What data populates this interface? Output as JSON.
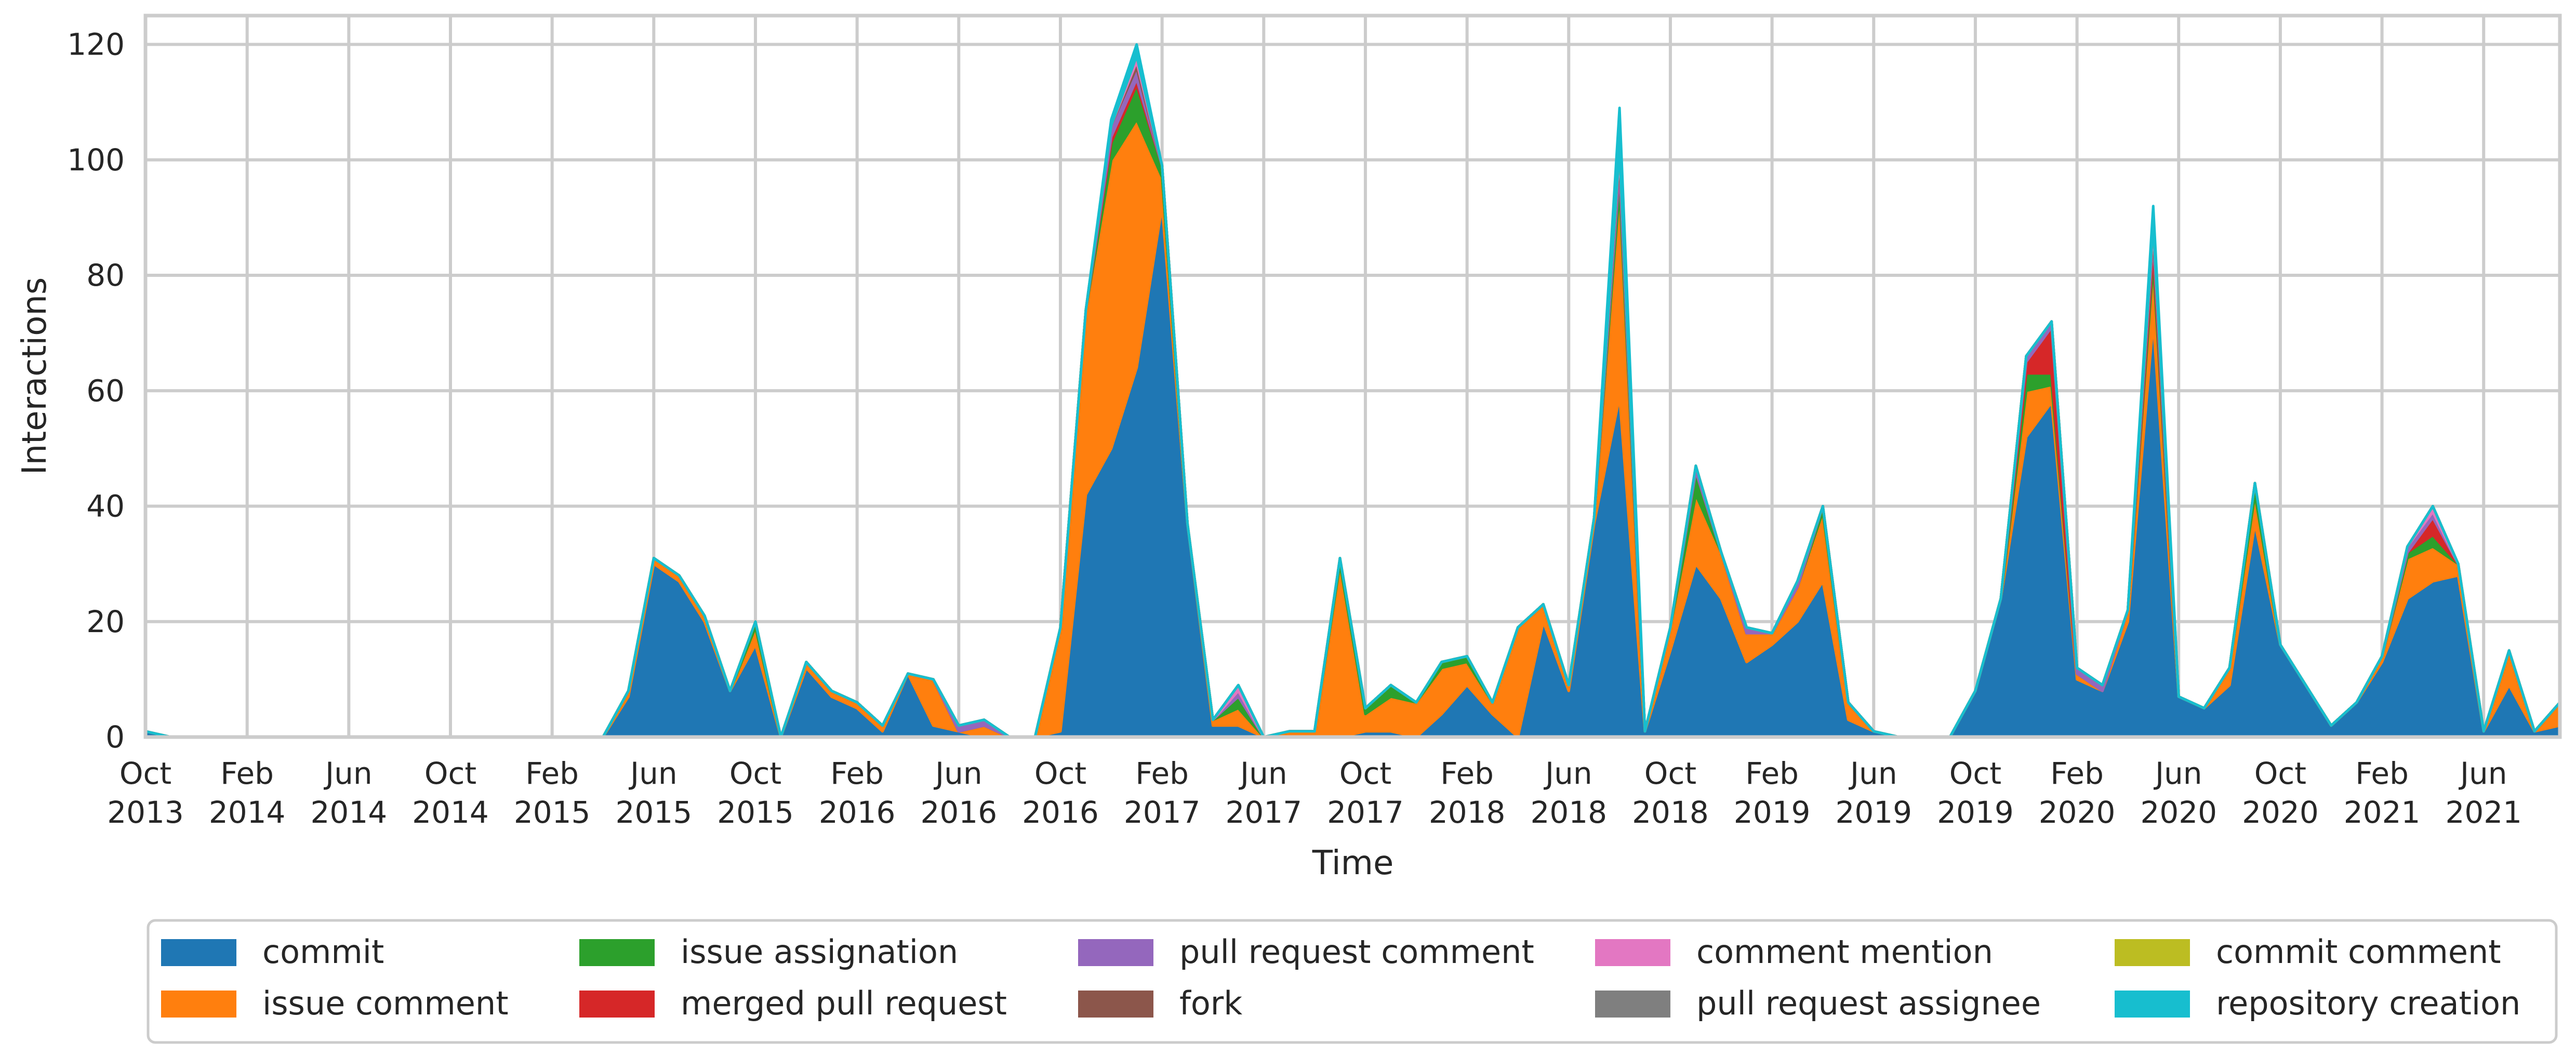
{
  "chart_data": {
    "type": "area",
    "stacked": true,
    "title": "",
    "xlabel": "Time",
    "ylabel": "Interactions",
    "ylim": [
      0,
      125
    ],
    "y_ticks": [
      0,
      20,
      40,
      60,
      80,
      100,
      120
    ],
    "x_range": [
      "2013-10",
      "2021-09"
    ],
    "x_ticks": [
      {
        "date": "2013-10",
        "label": [
          "Oct",
          "2013"
        ]
      },
      {
        "date": "2014-02",
        "label": [
          "Feb",
          "2014"
        ]
      },
      {
        "date": "2014-06",
        "label": [
          "Jun",
          "2014"
        ]
      },
      {
        "date": "2014-10",
        "label": [
          "Oct",
          "2014"
        ]
      },
      {
        "date": "2015-02",
        "label": [
          "Feb",
          "2015"
        ]
      },
      {
        "date": "2015-06",
        "label": [
          "Jun",
          "2015"
        ]
      },
      {
        "date": "2015-10",
        "label": [
          "Oct",
          "2015"
        ]
      },
      {
        "date": "2016-02",
        "label": [
          "Feb",
          "2016"
        ]
      },
      {
        "date": "2016-06",
        "label": [
          "Jun",
          "2016"
        ]
      },
      {
        "date": "2016-10",
        "label": [
          "Oct",
          "2016"
        ]
      },
      {
        "date": "2017-02",
        "label": [
          "Feb",
          "2017"
        ]
      },
      {
        "date": "2017-06",
        "label": [
          "Jun",
          "2017"
        ]
      },
      {
        "date": "2017-10",
        "label": [
          "Oct",
          "2017"
        ]
      },
      {
        "date": "2018-02",
        "label": [
          "Feb",
          "2018"
        ]
      },
      {
        "date": "2018-06",
        "label": [
          "Jun",
          "2018"
        ]
      },
      {
        "date": "2018-10",
        "label": [
          "Oct",
          "2018"
        ]
      },
      {
        "date": "2019-02",
        "label": [
          "Feb",
          "2019"
        ]
      },
      {
        "date": "2019-06",
        "label": [
          "Jun",
          "2019"
        ]
      },
      {
        "date": "2019-10",
        "label": [
          "Oct",
          "2019"
        ]
      },
      {
        "date": "2020-02",
        "label": [
          "Feb",
          "2020"
        ]
      },
      {
        "date": "2020-06",
        "label": [
          "Jun",
          "2020"
        ]
      },
      {
        "date": "2020-10",
        "label": [
          "Oct",
          "2020"
        ]
      },
      {
        "date": "2021-02",
        "label": [
          "Feb",
          "2021"
        ]
      },
      {
        "date": "2021-06",
        "label": [
          "Jun",
          "2021"
        ]
      }
    ],
    "grid": true,
    "legend_position": "bottom",
    "x": [
      "2013-10",
      "2013-11",
      "2013-12",
      "2014-01",
      "2014-02",
      "2014-03",
      "2014-04",
      "2014-05",
      "2014-06",
      "2014-07",
      "2014-08",
      "2014-09",
      "2014-10",
      "2014-11",
      "2014-12",
      "2015-01",
      "2015-02",
      "2015-03",
      "2015-04",
      "2015-05",
      "2015-06",
      "2015-07",
      "2015-08",
      "2015-09",
      "2015-10",
      "2015-11",
      "2015-12",
      "2016-01",
      "2016-02",
      "2016-03",
      "2016-04",
      "2016-05",
      "2016-06",
      "2016-07",
      "2016-08",
      "2016-09",
      "2016-10",
      "2016-11",
      "2016-12",
      "2017-01",
      "2017-02",
      "2017-03",
      "2017-04",
      "2017-05",
      "2017-06",
      "2017-07",
      "2017-08",
      "2017-09",
      "2017-10",
      "2017-11",
      "2017-12",
      "2018-01",
      "2018-02",
      "2018-03",
      "2018-04",
      "2018-05",
      "2018-06",
      "2018-07",
      "2018-08",
      "2018-09",
      "2018-10",
      "2018-11",
      "2018-12",
      "2019-01",
      "2019-02",
      "2019-03",
      "2019-04",
      "2019-05",
      "2019-06",
      "2019-07",
      "2019-08",
      "2019-09",
      "2019-10",
      "2019-11",
      "2019-12",
      "2020-01",
      "2020-02",
      "2020-03",
      "2020-04",
      "2020-05",
      "2020-06",
      "2020-07",
      "2020-08",
      "2020-09",
      "2020-10",
      "2020-11",
      "2020-12",
      "2021-01",
      "2021-02",
      "2021-03",
      "2021-04",
      "2021-05",
      "2021-06",
      "2021-07",
      "2021-08",
      "2021-09"
    ],
    "series": [
      {
        "name": "commit",
        "color": "#1f77b4",
        "values": [
          1,
          0,
          0,
          0,
          0,
          0,
          0,
          0,
          0,
          0,
          0,
          0,
          0,
          0,
          0,
          0,
          0,
          0,
          0,
          7,
          30,
          27,
          20,
          8,
          16,
          0,
          12,
          7,
          5,
          1,
          11,
          2,
          1,
          0,
          0,
          0,
          1,
          42,
          50,
          64,
          92,
          37,
          2,
          2,
          0,
          0,
          0,
          0,
          1,
          1,
          0,
          4,
          9,
          4,
          0,
          20,
          8,
          37,
          59,
          1,
          15,
          30,
          24,
          13,
          16,
          20,
          27,
          3,
          1,
          0,
          0,
          0,
          8,
          24,
          52,
          58,
          10,
          8,
          20,
          72,
          7,
          5,
          9,
          37,
          16,
          9,
          2,
          6,
          13,
          24,
          27,
          28,
          1,
          9,
          1,
          2
        ]
      },
      {
        "name": "issue comment",
        "color": "#ff7f0e",
        "values": [
          0,
          0,
          0,
          0,
          0,
          0,
          0,
          0,
          0,
          0,
          0,
          0,
          0,
          0,
          0,
          0,
          0,
          0,
          0,
          1,
          1,
          1,
          1,
          0,
          3,
          0,
          1,
          1,
          1,
          1,
          0,
          8,
          0,
          2,
          0,
          0,
          18,
          32,
          50,
          43,
          5,
          0,
          1,
          3,
          0,
          1,
          1,
          30,
          3,
          6,
          6,
          8,
          4,
          2,
          19,
          3,
          1,
          1,
          36,
          0,
          4,
          12,
          8,
          5,
          2,
          6,
          12,
          3,
          0,
          0,
          0,
          0,
          0,
          0,
          8,
          3,
          1,
          0,
          2,
          10,
          0,
          0,
          3,
          5,
          0,
          0,
          0,
          0,
          1,
          7,
          6,
          2,
          0,
          6,
          0,
          4
        ]
      },
      {
        "name": "issue assignation",
        "color": "#2ca02c",
        "values": [
          0,
          0,
          0,
          0,
          0,
          0,
          0,
          0,
          0,
          0,
          0,
          0,
          0,
          0,
          0,
          0,
          0,
          0,
          0,
          0,
          0,
          0,
          0,
          0,
          1,
          0,
          0,
          0,
          0,
          0,
          0,
          0,
          0,
          0,
          0,
          0,
          0,
          0,
          3,
          6,
          2,
          0,
          0,
          2,
          0,
          0,
          0,
          1,
          1,
          2,
          0,
          1,
          1,
          0,
          0,
          0,
          0,
          0,
          3,
          0,
          0,
          4,
          0,
          0,
          0,
          0,
          1,
          0,
          0,
          0,
          0,
          0,
          0,
          0,
          3,
          2,
          0,
          0,
          0,
          2,
          0,
          0,
          0,
          2,
          0,
          0,
          0,
          0,
          0,
          1,
          2,
          0,
          0,
          0,
          0,
          0
        ]
      },
      {
        "name": "merged pull request",
        "color": "#d62728",
        "values": [
          0,
          0,
          0,
          0,
          0,
          0,
          0,
          0,
          0,
          0,
          0,
          0,
          0,
          0,
          0,
          0,
          0,
          0,
          0,
          0,
          0,
          0,
          0,
          0,
          0,
          0,
          0,
          0,
          0,
          0,
          0,
          0,
          0,
          0,
          0,
          0,
          0,
          0,
          1,
          1,
          0,
          0,
          0,
          0,
          0,
          0,
          0,
          0,
          0,
          0,
          0,
          0,
          0,
          0,
          0,
          0,
          0,
          0,
          0,
          0,
          0,
          0,
          0,
          0,
          0,
          0,
          0,
          0,
          0,
          0,
          0,
          0,
          0,
          0,
          2,
          8,
          0,
          0,
          0,
          2,
          0,
          0,
          0,
          0,
          0,
          0,
          0,
          0,
          0,
          0,
          3,
          0,
          0,
          0,
          0,
          0
        ]
      },
      {
        "name": "pull request comment",
        "color": "#9467bd",
        "values": [
          0,
          0,
          0,
          0,
          0,
          0,
          0,
          0,
          0,
          0,
          0,
          0,
          0,
          0,
          0,
          0,
          0,
          0,
          0,
          0,
          0,
          0,
          0,
          0,
          0,
          0,
          0,
          0,
          0,
          0,
          0,
          0,
          1,
          1,
          0,
          0,
          0,
          0,
          2,
          2,
          0,
          0,
          0,
          1,
          0,
          0,
          0,
          0,
          0,
          0,
          0,
          0,
          0,
          0,
          0,
          0,
          0,
          0,
          2,
          0,
          0,
          1,
          0,
          1,
          0,
          1,
          0,
          0,
          0,
          0,
          0,
          0,
          0,
          0,
          1,
          1,
          1,
          1,
          0,
          1,
          0,
          0,
          0,
          0,
          0,
          0,
          0,
          0,
          0,
          1,
          1,
          0,
          0,
          0,
          0,
          0
        ]
      },
      {
        "name": "fork",
        "color": "#8c564b",
        "values": [
          0,
          0,
          0,
          0,
          0,
          0,
          0,
          0,
          0,
          0,
          0,
          0,
          0,
          0,
          0,
          0,
          0,
          0,
          0,
          0,
          0,
          0,
          0,
          0,
          0,
          0,
          0,
          0,
          0,
          0,
          0,
          0,
          0,
          0,
          0,
          0,
          0,
          0,
          0,
          1,
          0,
          0,
          0,
          0,
          0,
          0,
          0,
          0,
          0,
          0,
          0,
          0,
          0,
          0,
          0,
          0,
          0,
          0,
          1,
          0,
          0,
          0,
          0,
          0,
          0,
          0,
          0,
          0,
          0,
          0,
          0,
          0,
          0,
          0,
          0,
          0,
          0,
          0,
          0,
          1,
          0,
          0,
          0,
          0,
          0,
          0,
          0,
          0,
          0,
          0,
          0,
          0,
          0,
          0,
          0,
          0
        ]
      },
      {
        "name": "comment mention",
        "color": "#e377c2",
        "values": [
          0,
          0,
          0,
          0,
          0,
          0,
          0,
          0,
          0,
          0,
          0,
          0,
          0,
          0,
          0,
          0,
          0,
          0,
          0,
          0,
          0,
          0,
          0,
          0,
          0,
          0,
          0,
          0,
          0,
          0,
          0,
          0,
          0,
          0,
          0,
          0,
          0,
          0,
          0,
          1,
          0,
          0,
          0,
          1,
          0,
          0,
          0,
          0,
          0,
          0,
          0,
          0,
          0,
          0,
          0,
          0,
          0,
          0,
          1,
          0,
          0,
          0,
          0,
          0,
          0,
          0,
          0,
          0,
          0,
          0,
          0,
          0,
          0,
          0,
          0,
          0,
          0,
          0,
          0,
          1,
          0,
          0,
          0,
          0,
          0,
          0,
          0,
          0,
          0,
          0,
          1,
          0,
          0,
          0,
          0,
          0
        ]
      },
      {
        "name": "pull request assignee",
        "color": "#7f7f7f",
        "values": [
          0,
          0,
          0,
          0,
          0,
          0,
          0,
          0,
          0,
          0,
          0,
          0,
          0,
          0,
          0,
          0,
          0,
          0,
          0,
          0,
          0,
          0,
          0,
          0,
          0,
          0,
          0,
          0,
          0,
          0,
          0,
          0,
          0,
          0,
          0,
          0,
          0,
          0,
          0,
          0,
          0,
          0,
          0,
          0,
          0,
          0,
          0,
          0,
          0,
          0,
          0,
          0,
          0,
          0,
          0,
          0,
          0,
          0,
          0,
          0,
          0,
          0,
          0,
          0,
          0,
          0,
          0,
          0,
          0,
          0,
          0,
          0,
          0,
          0,
          0,
          0,
          0,
          0,
          0,
          0,
          0,
          0,
          0,
          0,
          0,
          0,
          0,
          0,
          0,
          0,
          0,
          0,
          0,
          0,
          0,
          0
        ]
      },
      {
        "name": "commit comment",
        "color": "#bcbd22",
        "values": [
          0,
          0,
          0,
          0,
          0,
          0,
          0,
          0,
          0,
          0,
          0,
          0,
          0,
          0,
          0,
          0,
          0,
          0,
          0,
          0,
          0,
          0,
          0,
          0,
          0,
          0,
          0,
          0,
          0,
          0,
          0,
          0,
          0,
          0,
          0,
          0,
          0,
          0,
          0,
          0,
          0,
          0,
          0,
          0,
          0,
          0,
          0,
          0,
          0,
          0,
          0,
          0,
          0,
          0,
          0,
          0,
          0,
          0,
          0,
          0,
          0,
          0,
          0,
          0,
          0,
          0,
          0,
          0,
          0,
          0,
          0,
          0,
          0,
          0,
          0,
          0,
          0,
          0,
          0,
          0,
          0,
          0,
          0,
          0,
          0,
          0,
          0,
          0,
          0,
          0,
          0,
          0,
          0,
          0,
          0,
          0
        ]
      },
      {
        "name": "repository creation",
        "color": "#17becf",
        "values": [
          0,
          0,
          0,
          0,
          0,
          0,
          0,
          0,
          0,
          0,
          0,
          0,
          0,
          0,
          0,
          0,
          0,
          0,
          0,
          0,
          0,
          0,
          0,
          0,
          0,
          0,
          0,
          0,
          0,
          0,
          0,
          0,
          0,
          0,
          0,
          0,
          0,
          0,
          1,
          2,
          0,
          0,
          0,
          0,
          0,
          0,
          0,
          0,
          0,
          0,
          0,
          0,
          0,
          0,
          0,
          0,
          0,
          0,
          7,
          0,
          0,
          0,
          0,
          0,
          0,
          0,
          0,
          0,
          0,
          0,
          0,
          0,
          0,
          0,
          0,
          0,
          0,
          0,
          0,
          3,
          0,
          0,
          0,
          0,
          0,
          0,
          0,
          0,
          0,
          0,
          0,
          0,
          0,
          0,
          0,
          0
        ]
      }
    ]
  }
}
